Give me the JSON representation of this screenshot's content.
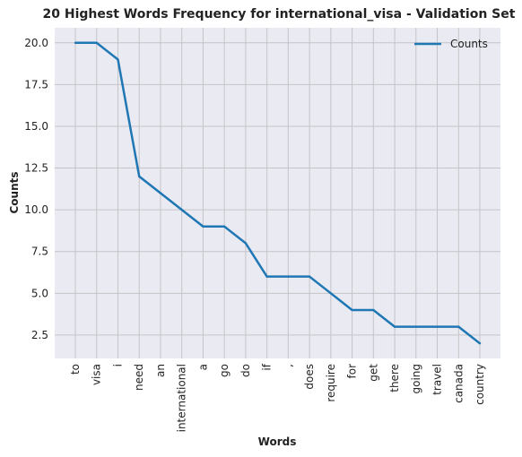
{
  "chart_data": {
    "type": "line",
    "title": "20 Highest Words Frequency for international_visa - Validation Set",
    "xlabel": "Words",
    "ylabel": "Counts",
    "categories": [
      "to",
      "visa",
      "i",
      "need",
      "an",
      "international",
      "a",
      "go",
      "do",
      "if",
      ",",
      "does",
      "require",
      "for",
      "get",
      "there",
      "going",
      "travel",
      "canada",
      "country"
    ],
    "series": [
      {
        "name": "Counts",
        "values": [
          20,
          20,
          19,
          12,
          11,
          10,
          9,
          9,
          8,
          6,
          6,
          6,
          5,
          4,
          4,
          3,
          3,
          3,
          3,
          2
        ],
        "color": "#1f77b4"
      }
    ],
    "yticks": [
      "2.5",
      "5.0",
      "7.5",
      "10.0",
      "12.5",
      "15.0",
      "17.5",
      "20.0"
    ],
    "ylim": [
      1.1,
      20.9
    ],
    "grid": true,
    "legend_position": "top-right"
  }
}
